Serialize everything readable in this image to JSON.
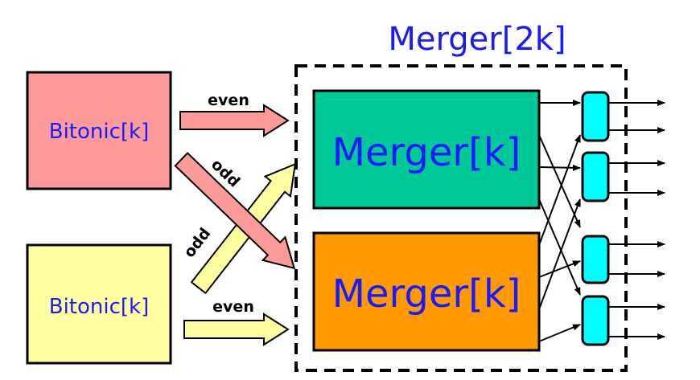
{
  "title": "Merger[2k]",
  "inputs": {
    "top": {
      "label": "Bitonic[k]",
      "color": "#fd9a9a"
    },
    "bottom": {
      "label": "Bitonic[k]",
      "color": "#ffff9f"
    }
  },
  "mergers": {
    "top": {
      "label": "Merger[k]",
      "color": "#00c896"
    },
    "bottom": {
      "label": "Merger[k]",
      "color": "#ff9a00"
    }
  },
  "arrows": {
    "top_even": "even",
    "top_odd": "odd",
    "bottom_odd": "odd",
    "bottom_even": "even"
  },
  "comparator_color": "#00ffff",
  "text_color": "#1a1aff"
}
